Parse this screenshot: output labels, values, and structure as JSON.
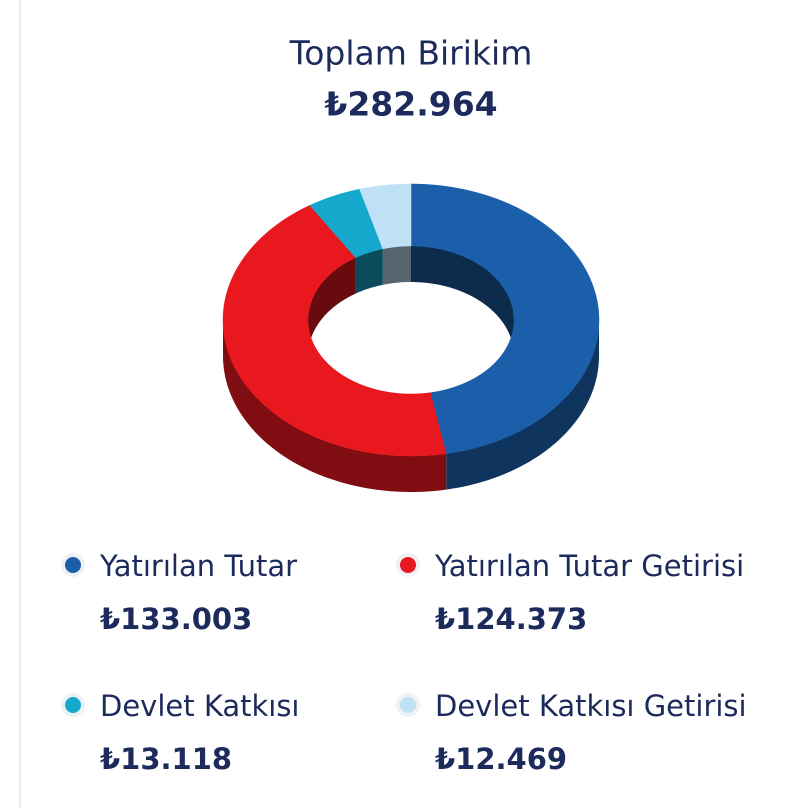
{
  "chart_data": {
    "type": "donut3d",
    "title": "Toplam Birikim",
    "subtitle": "₺282.964",
    "categories": [
      "Yatırılan Tutar",
      "Yatırılan Tutar Getirisi",
      "Devlet Katkısı",
      "Devlet Katkısı Getirisi"
    ],
    "values": [
      133003,
      124373,
      13118,
      12469
    ],
    "value_labels": [
      "₺133.003",
      "₺124.373",
      "₺13.118",
      "₺12.469"
    ],
    "colors": [
      "#1b5fab",
      "#e8181e",
      "#16a8cc",
      "#bfe1f6"
    ]
  }
}
